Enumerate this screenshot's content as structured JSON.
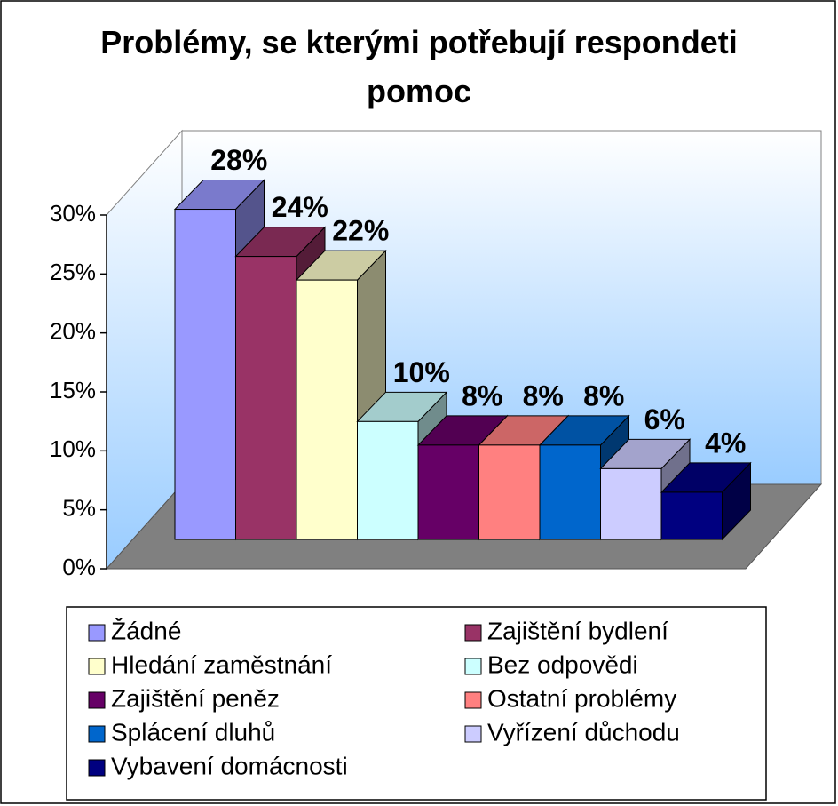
{
  "chart_data": {
    "type": "bar3d",
    "title": "Problémy, se kterými potřebují respondeti pomoc",
    "categories": [
      "Žádné",
      "Zajištění bydlení",
      "Hledání zaměstnání",
      "Bez odpovědi",
      "Zajištění peněz",
      "Ostatní problémy",
      "Splácení dluhů",
      "Vyřízení důchodu",
      "Vybavení domácnosti"
    ],
    "values": [
      28,
      24,
      22,
      10,
      8,
      8,
      8,
      6,
      4
    ],
    "value_labels": [
      "28%",
      "24%",
      "22%",
      "10%",
      "8%",
      "8%",
      "8%",
      "6%",
      "4%"
    ],
    "colors": [
      "#9999ff",
      "#993366",
      "#ffffcc",
      "#ccffff",
      "#660066",
      "#ff8080",
      "#0066cc",
      "#ccccff",
      "#000080"
    ],
    "ylim": [
      0,
      30
    ],
    "yticks": [
      {
        "value": 0,
        "label": "0%"
      },
      {
        "value": 5,
        "label": "5%"
      },
      {
        "value": 10,
        "label": "10%"
      },
      {
        "value": 15,
        "label": "15%"
      },
      {
        "value": 20,
        "label": "20%"
      },
      {
        "value": 25,
        "label": "25%"
      },
      {
        "value": 30,
        "label": "30%"
      }
    ],
    "legend": "bottom"
  }
}
